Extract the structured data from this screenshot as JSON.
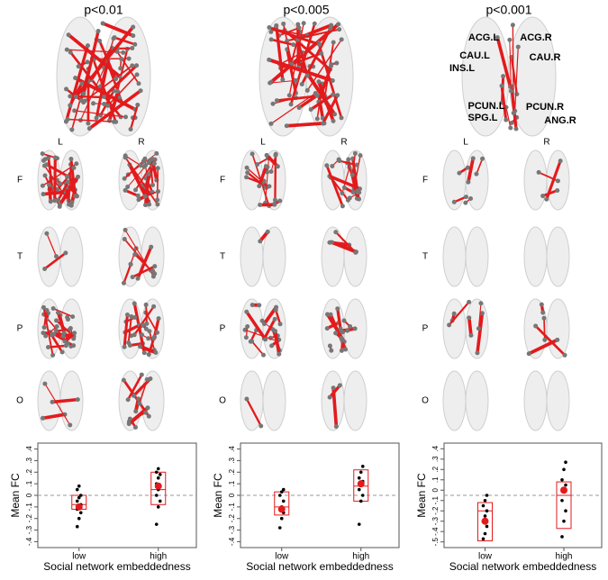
{
  "panels": [
    {
      "title": "p<0.01",
      "hemispheres": [
        "L",
        "R"
      ],
      "lobes": [
        "F",
        "T",
        "P",
        "O"
      ]
    },
    {
      "title": "p<0.005",
      "hemispheres": [
        "L",
        "R"
      ],
      "lobes": [
        "F",
        "T",
        "P",
        "O"
      ]
    },
    {
      "title": "p<0.001",
      "hemispheres": [
        "L",
        "R"
      ],
      "lobes": [
        "F",
        "T",
        "P",
        "O"
      ]
    }
  ],
  "region_labels": [
    "ACG.L",
    "ACG.R",
    "CAU.L",
    "CAU.R",
    "INS.L",
    "PCUN.L",
    "PCUN.R",
    "SPG.L",
    "ANG.R"
  ],
  "chart_data": [
    {
      "type": "box",
      "ylabel": "Mean FC",
      "xlabel": "Social network embeddedness",
      "categories": [
        "low",
        "high"
      ],
      "color": "#e31a1c",
      "point_color": "#000000",
      "reference_line": 0,
      "ylim": [
        -0.42,
        0.42
      ],
      "yticks": [
        {
          "value": 0.4,
          "label": ".4"
        },
        {
          "value": 0.3,
          "label": ".3"
        },
        {
          "value": 0.2,
          "label": ".2"
        },
        {
          "value": 0.1,
          "label": ".1"
        },
        0,
        {
          "value": -0.1,
          "label": "-.1"
        },
        {
          "value": -0.2,
          "label": "-.2"
        },
        {
          "value": -0.3,
          "label": "-.3"
        },
        {
          "value": -0.4,
          "label": "-.4"
        }
      ],
      "groups": [
        {
          "q1": -0.12,
          "median": -0.08,
          "q3": 0.0,
          "mean": -0.1,
          "points": [
            -0.27,
            -0.2,
            -0.15,
            -0.12,
            -0.1,
            -0.08,
            -0.05,
            -0.02,
            0.0,
            0.05,
            0.08
          ]
        },
        {
          "q1": -0.08,
          "median": 0.05,
          "q3": 0.2,
          "mean": 0.08,
          "points": [
            -0.25,
            -0.1,
            -0.05,
            0.0,
            0.05,
            0.08,
            0.1,
            0.15,
            0.18,
            0.2,
            0.23
          ]
        }
      ]
    },
    {
      "type": "box",
      "ylabel": "Mean FC",
      "xlabel": "Social network embeddedness",
      "categories": [
        "low",
        "high"
      ],
      "color": "#e31a1c",
      "point_color": "#000000",
      "reference_line": 0,
      "ylim": [
        -0.42,
        0.42
      ],
      "yticks": [
        {
          "value": 0.4,
          "label": ".4"
        },
        {
          "value": 0.3,
          "label": ".3"
        },
        {
          "value": 0.2,
          "label": ".2"
        },
        {
          "value": 0.1,
          "label": ".1"
        },
        0,
        {
          "value": -0.1,
          "label": "-.1"
        },
        {
          "value": -0.2,
          "label": "-.2"
        },
        {
          "value": -0.3,
          "label": "-.3"
        },
        {
          "value": -0.4,
          "label": "-.4"
        }
      ],
      "groups": [
        {
          "q1": -0.17,
          "median": -0.1,
          "q3": 0.03,
          "mean": -0.12,
          "points": [
            -0.28,
            -0.2,
            -0.15,
            -0.12,
            -0.1,
            -0.05,
            0.0,
            0.03,
            0.05
          ]
        },
        {
          "q1": -0.05,
          "median": 0.08,
          "q3": 0.22,
          "mean": 0.1,
          "points": [
            -0.25,
            -0.05,
            0.0,
            0.05,
            0.1,
            0.12,
            0.15,
            0.2,
            0.25
          ]
        }
      ]
    },
    {
      "type": "box",
      "ylabel": "Mean FC",
      "xlabel": "Social network embeddedness",
      "categories": [
        "low",
        "high"
      ],
      "color": "#e31a1c",
      "point_color": "#000000",
      "reference_line": -0.05,
      "ylim": [
        -0.52,
        0.42
      ],
      "yticks": [
        {
          "value": 0.4,
          "label": ".4"
        },
        {
          "value": 0.3,
          "label": ".3"
        },
        {
          "value": 0.2,
          "label": ".2"
        },
        {
          "value": 0.1,
          "label": ".1"
        },
        0,
        {
          "value": -0.1,
          "label": "-.1"
        },
        {
          "value": -0.2,
          "label": "-.2"
        },
        {
          "value": -0.3,
          "label": "-.3"
        },
        {
          "value": -0.4,
          "label": "-.4"
        },
        {
          "value": -0.5,
          "label": "-.5"
        }
      ],
      "groups": [
        {
          "q1": -0.49,
          "median": -0.2,
          "q3": -0.12,
          "mean": -0.3,
          "points": [
            -0.47,
            -0.42,
            -0.35,
            -0.3,
            -0.25,
            -0.2,
            -0.15,
            -0.1,
            -0.05
          ]
        },
        {
          "q1": -0.37,
          "median": -0.05,
          "q3": 0.08,
          "mean": 0.0,
          "points": [
            -0.45,
            -0.3,
            -0.2,
            -0.1,
            0.0,
            0.05,
            0.1,
            0.2,
            0.27
          ]
        }
      ]
    }
  ]
}
